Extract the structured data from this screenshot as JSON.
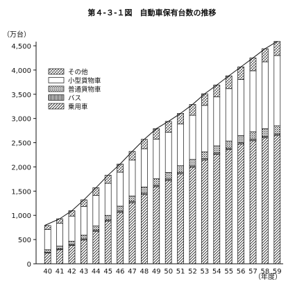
{
  "chart_data": {
    "type": "bar",
    "stacked": true,
    "title": "第４-３-１図　自動車保有台数の推移",
    "ylabel": "（万台）",
    "xlabel": "（年度）",
    "ylim": [
      0,
      4500
    ],
    "yticks": [
      0,
      500,
      1000,
      1500,
      2000,
      2500,
      3000,
      3500,
      4000,
      4500
    ],
    "ytick_labels": [
      "0",
      "500",
      "1,000",
      "1,500",
      "2,000",
      "2,500",
      "3,000",
      "3,500",
      "4,000",
      "4,500"
    ],
    "categories": [
      "40",
      "41",
      "42",
      "43",
      "44",
      "45",
      "46",
      "47",
      "48",
      "49",
      "50",
      "51",
      "52",
      "53",
      "54",
      "55",
      "56",
      "57",
      "58",
      "59"
    ],
    "series": [
      {
        "name": "乗用車",
        "pattern": "diag",
        "values": [
          220,
          290,
          380,
          490,
          670,
          880,
          1060,
          1260,
          1430,
          1590,
          1720,
          1860,
          1990,
          2140,
          2260,
          2360,
          2470,
          2540,
          2600,
          2650
        ]
      },
      {
        "name": "バス",
        "pattern": "vertical",
        "values": [
          20,
          20,
          20,
          25,
          25,
          25,
          30,
          30,
          30,
          30,
          30,
          30,
          30,
          30,
          30,
          30,
          30,
          30,
          30,
          30
        ]
      },
      {
        "name": "普通貨物車",
        "pattern": "dots",
        "values": [
          50,
          55,
          65,
          75,
          85,
          95,
          100,
          110,
          125,
          135,
          135,
          135,
          135,
          140,
          145,
          145,
          145,
          155,
          160,
          170
        ]
      },
      {
        "name": "小型貨物車",
        "pattern": "blank",
        "values": [
          420,
          470,
          520,
          590,
          630,
          660,
          700,
          740,
          790,
          820,
          830,
          860,
          910,
          960,
          1010,
          1080,
          1160,
          1260,
          1380,
          1450
        ]
      },
      {
        "name": "その他",
        "pattern": "cross",
        "values": [
          80,
          95,
          110,
          140,
          160,
          170,
          170,
          180,
          195,
          215,
          225,
          220,
          225,
          240,
          245,
          265,
          260,
          265,
          270,
          290
        ]
      }
    ],
    "legend": {
      "position": "upper-left",
      "order": [
        "その他",
        "小型貨物車",
        "普通貨物車",
        "バス",
        "乗用車"
      ]
    },
    "trend_line": "total",
    "grid": false
  }
}
